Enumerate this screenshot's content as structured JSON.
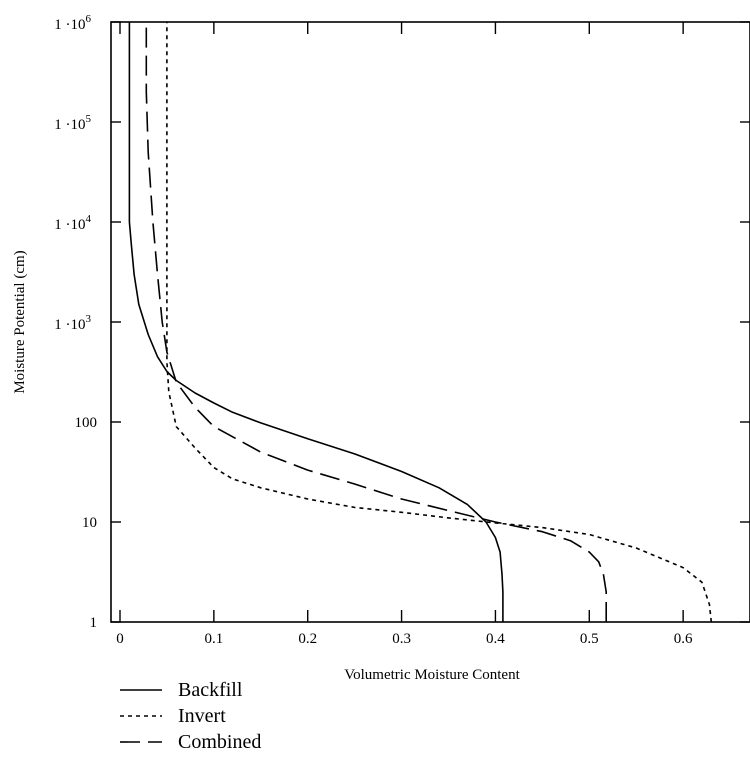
{
  "chart_data": {
    "type": "line",
    "xlabel": "Volumetric Moisture Content",
    "ylabel": "Moisture Potential (cm)",
    "xlim": [
      0,
      0.7
    ],
    "ylim": [
      1,
      1000000
    ],
    "yscale": "log",
    "x_ticks": [
      "0",
      "0.1",
      "0.2",
      "0.3",
      "0.4",
      "0.5",
      "0.6"
    ],
    "y_ticks": [
      {
        "base": "1",
        "exp": ""
      },
      {
        "base": "10",
        "exp": ""
      },
      {
        "base": "100",
        "exp": ""
      },
      {
        "base": "1 ·10",
        "exp": "3"
      },
      {
        "base": "1 ·10",
        "exp": "4"
      },
      {
        "base": "1 ·10",
        "exp": "5"
      },
      {
        "base": "1 ·10",
        "exp": "6"
      }
    ],
    "grid": false,
    "legend_position": "bottom-left",
    "series": [
      {
        "name": "Backfill",
        "style": "solid",
        "x": [
          0.408,
          0.408,
          0.407,
          0.405,
          0.4,
          0.39,
          0.37,
          0.34,
          0.3,
          0.25,
          0.2,
          0.15,
          0.12,
          0.1,
          0.08,
          0.06,
          0.05,
          0.04,
          0.03,
          0.02,
          0.015,
          0.012,
          0.01,
          0.01
        ],
        "y": [
          1,
          2,
          3,
          5,
          7,
          10,
          15,
          22,
          32,
          48,
          68,
          98,
          125,
          155,
          195,
          260,
          320,
          450,
          750,
          1500,
          3000,
          6000,
          10000,
          1000000
        ]
      },
      {
        "name": "Invert",
        "style": "dotted",
        "x": [
          0.63,
          0.628,
          0.62,
          0.6,
          0.55,
          0.5,
          0.45,
          0.4,
          0.35,
          0.3,
          0.25,
          0.2,
          0.15,
          0.12,
          0.1,
          0.08,
          0.06,
          0.052,
          0.05,
          0.05
        ],
        "y": [
          1,
          1.5,
          2.5,
          3.5,
          5.5,
          7.5,
          8.8,
          9.8,
          11,
          12.5,
          14,
          17,
          22,
          27,
          35,
          55,
          90,
          200,
          400,
          1000000
        ]
      },
      {
        "name": "Combined",
        "style": "dashed",
        "x": [
          0.518,
          0.518,
          0.515,
          0.51,
          0.5,
          0.48,
          0.45,
          0.4,
          0.35,
          0.3,
          0.25,
          0.2,
          0.15,
          0.1,
          0.08,
          0.06,
          0.05,
          0.045,
          0.04,
          0.035,
          0.03,
          0.028,
          0.028
        ],
        "y": [
          1,
          2,
          3,
          4,
          5,
          6.5,
          8,
          10,
          13,
          17,
          24,
          33,
          50,
          90,
          140,
          250,
          500,
          1000,
          3000,
          10000,
          50000,
          200000,
          1000000
        ]
      }
    ]
  }
}
